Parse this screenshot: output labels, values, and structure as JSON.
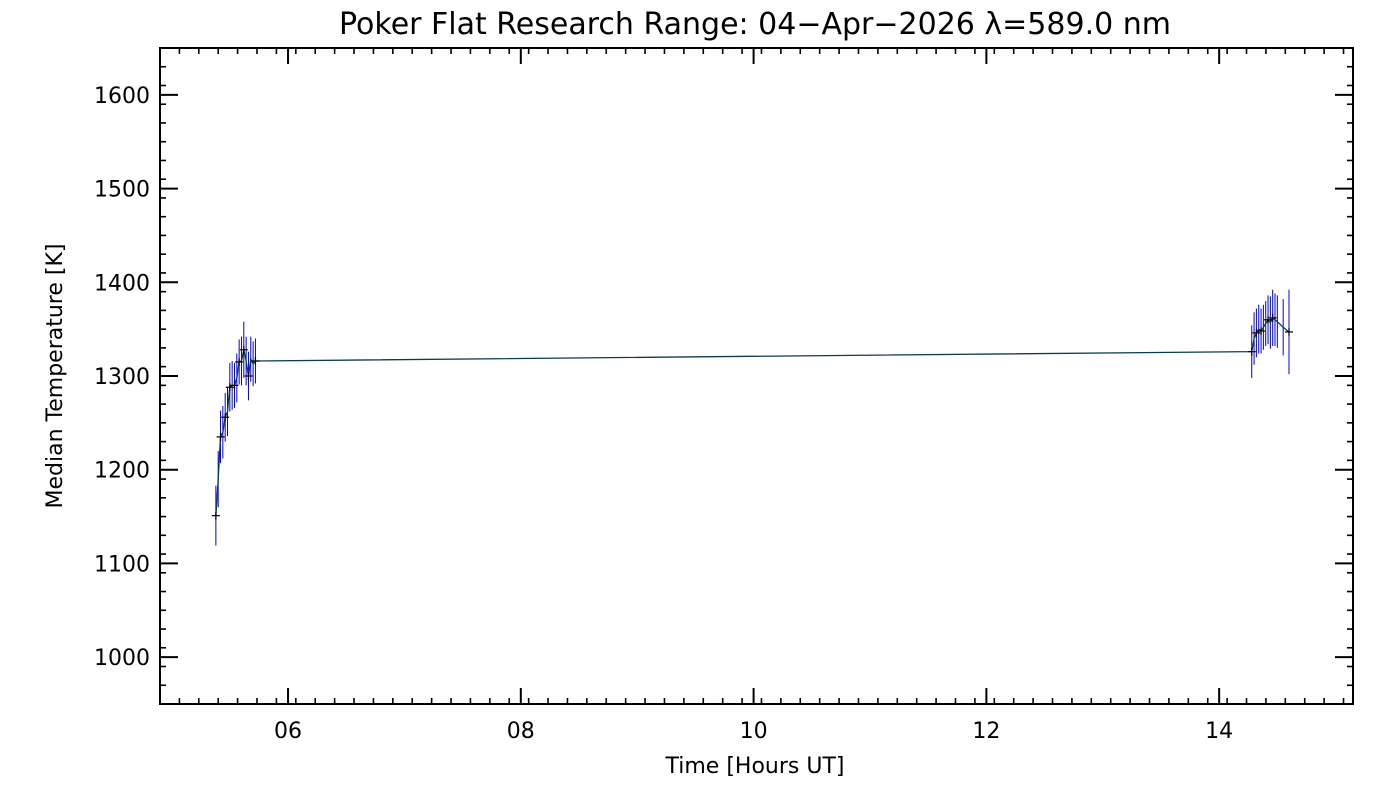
{
  "chart_data": {
    "type": "line",
    "title": "Poker Flat Research Range: 04−Apr−2026 λ=589.0 nm",
    "xlabel": "Time [Hours UT]",
    "ylabel": "Median Temperature [K]",
    "xlim": [
      4.9,
      15.15
    ],
    "ylim": [
      950,
      1650
    ],
    "x_ticks": [
      6,
      8,
      10,
      12,
      14
    ],
    "x_tick_labels": [
      "06",
      "08",
      "10",
      "12",
      14
    ],
    "y_ticks": [
      1000,
      1100,
      1200,
      1300,
      1400,
      1500,
      1600
    ],
    "y_tick_labels": [
      "1000",
      "1100",
      "1200",
      "1300",
      "1400",
      "1500",
      "1600"
    ],
    "x_minor_step": 0.1667,
    "y_minor_step": 20,
    "grid": false,
    "colors": {
      "error_bars": "#0000dd",
      "line": "#0b3d4a",
      "markers": "#000000"
    },
    "series": [
      {
        "name": "median temperature",
        "x": [
          5.38,
          5.4,
          5.42,
          5.44,
          5.46,
          5.48,
          5.5,
          5.52,
          5.54,
          5.56,
          5.58,
          5.6,
          5.62,
          5.64,
          5.66,
          5.68,
          5.7,
          5.72,
          14.28,
          14.3,
          14.32,
          14.34,
          14.36,
          14.38,
          14.4,
          14.42,
          14.44,
          14.46,
          14.48,
          14.5,
          14.55,
          14.6
        ],
        "y": [
          1151,
          1190,
          1235,
          1240,
          1256,
          1262,
          1288,
          1290,
          1290,
          1298,
          1315,
          1316,
          1328,
          1316,
          1300,
          1318,
          1313,
          1316,
          1326,
          1340,
          1346,
          1350,
          1348,
          1352,
          1356,
          1360,
          1357,
          1362,
          1360,
          1358,
          1352,
          1347
        ],
        "yerr": [
          32,
          30,
          28,
          28,
          26,
          26,
          26,
          26,
          24,
          26,
          24,
          26,
          30,
          26,
          26,
          24,
          24,
          24,
          28,
          28,
          26,
          26,
          24,
          24,
          24,
          26,
          28,
          30,
          28,
          28,
          30,
          45
        ],
        "marker_indices": [
          0,
          2,
          4,
          6,
          8,
          10,
          12,
          14,
          17,
          18,
          20,
          22,
          25,
          27,
          31
        ]
      }
    ]
  }
}
